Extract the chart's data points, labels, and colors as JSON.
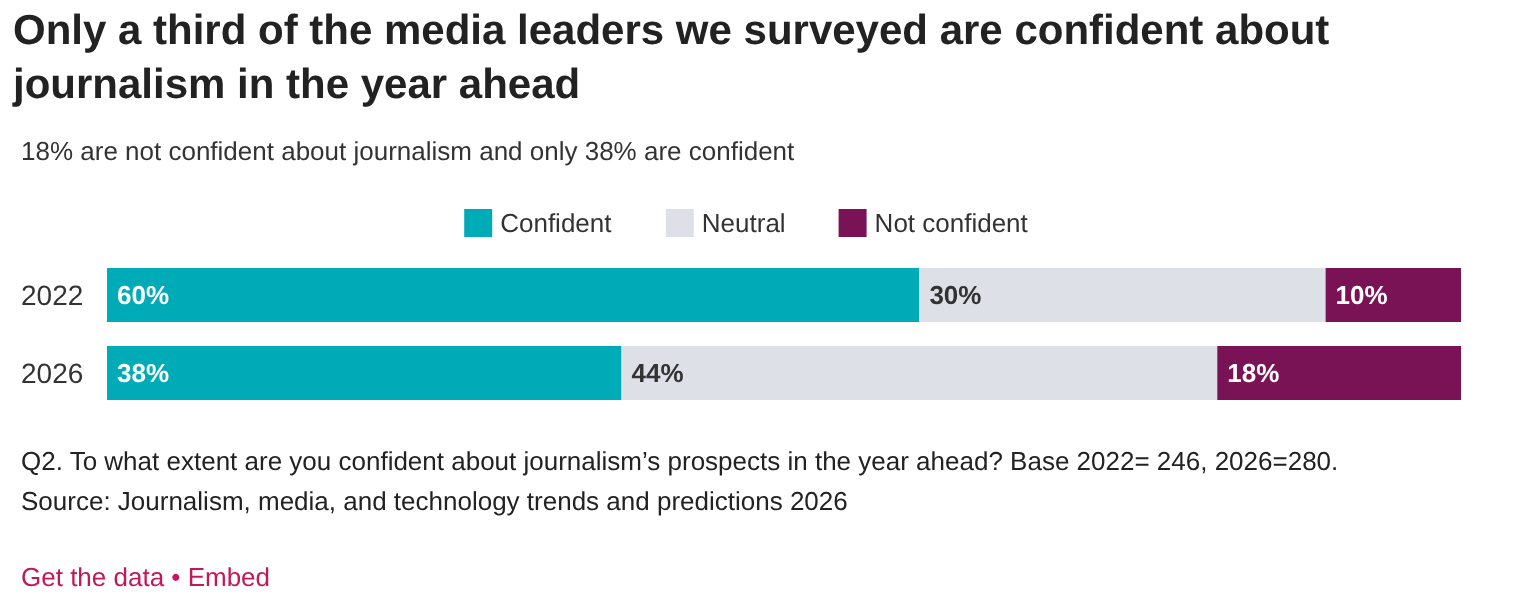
{
  "chart_data": {
    "type": "bar",
    "orientation": "horizontal",
    "stacked": true,
    "grid": false,
    "legend": "top",
    "title": "Only a third of the media leaders we surveyed are confident about journalism in the year ahead",
    "subtitle": "18% are not confident about journalism and only 38% are confident",
    "categories": [
      "2022",
      "2026"
    ],
    "series": [
      {
        "name": "Confident",
        "color": "#00abb8",
        "values": [
          60,
          38
        ],
        "value_labels": [
          "60%",
          "38%"
        ]
      },
      {
        "name": "Neutral",
        "color": "#dde1e7",
        "values": [
          30,
          44
        ],
        "value_labels": [
          "30%",
          "44%"
        ]
      },
      {
        "name": "Not confident",
        "color": "#7a1356",
        "values": [
          10,
          18
        ],
        "value_labels": [
          "10%",
          "18%"
        ]
      }
    ],
    "annotations": [
      "Q2. To what extent are you confident about journalism’s prospects in the year ahead? Base 2022= 246, 2026=280.",
      "Source: Journalism, media, and technology trends and predictions 2026",
      "Get the data • Embed"
    ]
  }
}
